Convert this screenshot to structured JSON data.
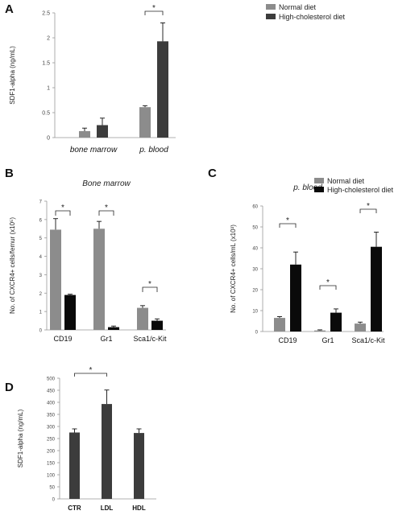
{
  "panels": [
    {
      "letter": "A",
      "chart_data": {
        "type": "bar",
        "title": "",
        "ylabel": "SDF1-alpha (ng/mL)",
        "xlabel": "",
        "ylim": [
          0,
          2.5
        ],
        "yticks": [
          0,
          0.5,
          1,
          1.5,
          2,
          2.5
        ],
        "ytick_labels": [
          "0",
          "0.5",
          "1",
          "1.5",
          "2",
          "2.5"
        ],
        "categories": [
          "bone marrow",
          "p. blood"
        ],
        "category_italic": true,
        "series": [
          {
            "name": "Normal diet",
            "color": "#8c8c8c",
            "values": [
              0.13,
              0.61
            ],
            "errors": [
              0.06,
              0.03
            ]
          },
          {
            "name": "High-cholesterol diet",
            "color": "#3c3c3c",
            "values": [
              0.25,
              1.93
            ],
            "errors": [
              0.14,
              0.37
            ]
          }
        ],
        "significance": [
          {
            "category": 1,
            "label": "*"
          }
        ],
        "legend": "top-right"
      }
    },
    {
      "letter": "B",
      "chart_data": {
        "type": "bar",
        "title": "Bone marrow",
        "ylabel": "No. of CXCR4+ cells/femur (x10⁵)",
        "xlabel": "",
        "ylim": [
          0,
          7
        ],
        "yticks": [
          0,
          1,
          2,
          3,
          4,
          5,
          6,
          7
        ],
        "ytick_labels": [
          "0",
          "1",
          "2",
          "3",
          "4",
          "5",
          "6",
          "7"
        ],
        "categories": [
          "CD19",
          "Gr1",
          "Sca1/c-Kit"
        ],
        "category_italic": false,
        "series": [
          {
            "name": "Normal diet",
            "color": "#8c8c8c",
            "values": [
              5.45,
              5.5,
              1.2
            ],
            "errors": [
              0.6,
              0.4,
              0.12
            ]
          },
          {
            "name": "High-cholesterol diet",
            "color": "#0a0a0a",
            "values": [
              1.9,
              0.15,
              0.5
            ],
            "errors": [
              0.04,
              0.06,
              0.1
            ]
          }
        ],
        "significance": [
          {
            "category": 0,
            "label": "*"
          },
          {
            "category": 1,
            "label": "*"
          },
          {
            "category": 2,
            "label": "*"
          }
        ],
        "legend": "none"
      }
    },
    {
      "letter": "C",
      "chart_data": {
        "type": "bar",
        "title": "p. blood",
        "ylabel": "No. of CXCR4+ cells/mL (x10³)",
        "xlabel": "",
        "ylim": [
          0,
          60
        ],
        "yticks": [
          0,
          10,
          20,
          30,
          40,
          50,
          60
        ],
        "ytick_labels": [
          "0",
          "10",
          "20",
          "30",
          "40",
          "50",
          "60"
        ],
        "categories": [
          "CD19",
          "Gr1",
          "Sca1/c-Kit"
        ],
        "category_italic": false,
        "series": [
          {
            "name": "Normal diet",
            "color": "#8c8c8c",
            "values": [
              6.5,
              0.5,
              3.8
            ],
            "errors": [
              0.6,
              0.3,
              0.7
            ]
          },
          {
            "name": "High-cholesterol diet",
            "color": "#0a0a0a",
            "values": [
              32,
              9,
              40.5
            ],
            "errors": [
              6,
              1.8,
              7
            ]
          }
        ],
        "significance": [
          {
            "category": 0,
            "label": "*"
          },
          {
            "category": 1,
            "label": "*"
          },
          {
            "category": 2,
            "label": "*"
          }
        ],
        "legend": "top-right"
      }
    },
    {
      "letter": "D",
      "chart_data": {
        "type": "bar",
        "title": "",
        "ylabel": "SDF1-alpha (ng/mL)",
        "xlabel": "",
        "ylim": [
          0,
          500
        ],
        "yticks": [
          0,
          50,
          100,
          150,
          200,
          250,
          300,
          350,
          400,
          450,
          500
        ],
        "ytick_labels": [
          "0",
          "50",
          "100",
          "150",
          "200",
          "250",
          "300",
          "350",
          "400",
          "450",
          "500"
        ],
        "categories": [
          "CTR",
          "LDL",
          "HDL"
        ],
        "category_bold": true,
        "series": [
          {
            "name": "",
            "color": "#3c3c3c",
            "values": [
              275,
              393,
              273
            ],
            "errors": [
              15,
              58,
              17
            ]
          }
        ],
        "significance": [
          {
            "from": 0,
            "to": 1,
            "label": "*"
          }
        ],
        "legend": "none"
      }
    }
  ]
}
